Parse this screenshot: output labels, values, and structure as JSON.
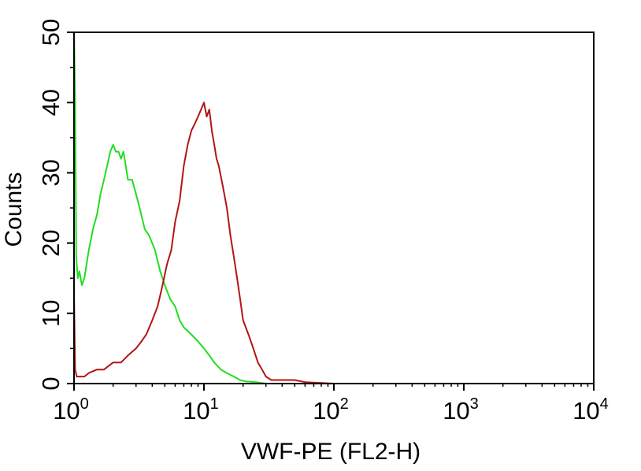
{
  "chart_data": {
    "type": "line",
    "title": "",
    "xlabel": "VWF-PE (FL2-H)",
    "ylabel": "Counts",
    "x_scale": "log",
    "xlim": [
      1,
      10000
    ],
    "ylim": [
      0,
      50
    ],
    "grid": false,
    "legend": "none",
    "x_ticks": [
      {
        "value": 1,
        "base": "10",
        "exp": "0"
      },
      {
        "value": 10,
        "base": "10",
        "exp": "1"
      },
      {
        "value": 100,
        "base": "10",
        "exp": "2"
      },
      {
        "value": 1000,
        "base": "10",
        "exp": "3"
      },
      {
        "value": 10000,
        "base": "10",
        "exp": "4"
      }
    ],
    "y_ticks": [
      {
        "value": 0,
        "label": "0"
      },
      {
        "value": 10,
        "label": "10"
      },
      {
        "value": 20,
        "label": "20"
      },
      {
        "value": 30,
        "label": "30"
      },
      {
        "value": 40,
        "label": "40"
      },
      {
        "value": 50,
        "label": "50"
      }
    ],
    "series": [
      {
        "color": "#22dd22",
        "x": [
          1.0,
          1.02,
          1.04,
          1.07,
          1.1,
          1.15,
          1.2,
          1.3,
          1.4,
          1.5,
          1.6,
          1.7,
          1.8,
          1.9,
          2.0,
          2.1,
          2.2,
          2.3,
          2.4,
          2.5,
          2.6,
          2.8,
          3.0,
          3.2,
          3.5,
          3.8,
          4.2,
          4.6,
          5.0,
          5.5,
          6.0,
          6.5,
          7.0,
          8.0,
          9.0,
          10.0,
          11.0,
          12.0,
          13.5,
          15.0,
          17.0,
          19.0,
          21.0,
          25.0,
          30.0,
          40.0,
          100.0,
          10000.0
        ],
        "values": [
          50,
          41,
          18,
          15,
          16,
          14,
          15,
          19,
          22,
          24,
          27,
          29,
          31,
          33,
          34,
          33,
          33,
          32,
          33,
          31,
          29,
          29,
          27,
          25,
          22,
          21,
          19,
          16,
          14,
          12,
          11,
          9,
          8,
          7,
          6,
          5,
          4,
          3,
          2,
          1.5,
          1,
          0.5,
          0.3,
          0.2,
          0,
          0,
          0,
          0
        ]
      },
      {
        "color": "#b41414",
        "x": [
          1.0,
          1.02,
          1.05,
          1.1,
          1.2,
          1.3,
          1.5,
          1.7,
          2.0,
          2.3,
          2.6,
          3.0,
          3.3,
          3.6,
          4.0,
          4.4,
          4.8,
          5.2,
          5.6,
          6.0,
          6.5,
          7.0,
          7.5,
          8.0,
          8.5,
          9.0,
          9.5,
          10.0,
          10.5,
          11.0,
          11.5,
          12.0,
          12.5,
          13.0,
          14.0,
          15.0,
          16.0,
          17.0,
          18.0,
          19.0,
          20.0,
          22.0,
          24.0,
          26.0,
          28.0,
          30.0,
          33.0,
          36.0,
          40.0,
          45.0,
          50.0,
          60.0,
          100.0,
          10000.0
        ],
        "values": [
          13,
          2,
          1,
          1,
          1,
          1.5,
          2,
          2,
          3,
          3,
          4,
          5,
          6,
          7,
          9,
          11,
          14,
          17,
          19,
          23,
          26,
          31,
          34,
          36,
          37,
          38,
          39,
          40,
          38,
          39,
          36,
          34,
          32,
          31,
          28,
          25,
          21,
          18,
          15,
          12,
          9,
          7,
          5,
          3,
          2,
          1,
          0.5,
          0.5,
          0.5,
          0.5,
          0.5,
          0.2,
          0,
          0
        ]
      }
    ]
  }
}
